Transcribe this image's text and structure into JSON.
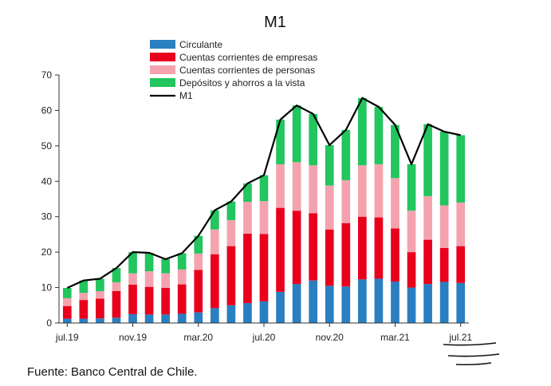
{
  "chart_data": {
    "type": "bar",
    "stacked": true,
    "title": "M1",
    "ylim": [
      0,
      70
    ],
    "yticks": [
      0,
      10,
      20,
      30,
      40,
      50,
      60,
      70
    ],
    "categories": [
      "jul.19",
      "ago.19",
      "sep.19",
      "oct.19",
      "nov.19",
      "dic.19",
      "ene.20",
      "feb.20",
      "mar.20",
      "abr.20",
      "may.20",
      "jun.20",
      "jul.20",
      "ago.20",
      "sep.20",
      "oct.20",
      "nov.20",
      "dic.20",
      "ene.21",
      "feb.21",
      "mar.21",
      "abr.21",
      "may.21",
      "jun.21",
      "jul.21"
    ],
    "xtick_labels": [
      {
        "index": 0,
        "label": "jul.19"
      },
      {
        "index": 4,
        "label": "nov.19"
      },
      {
        "index": 8,
        "label": "mar.20"
      },
      {
        "index": 12,
        "label": "jul.20"
      },
      {
        "index": 16,
        "label": "nov.20"
      },
      {
        "index": 20,
        "label": "mar.21"
      },
      {
        "index": 24,
        "label": "jul.21"
      }
    ],
    "series": [
      {
        "name": "Circulante",
        "color": "#2a7fc1",
        "values": [
          1.2,
          1.2,
          1.3,
          1.5,
          2.5,
          2.4,
          2.4,
          2.6,
          3.0,
          4.2,
          5.0,
          5.6,
          6.1,
          8.8,
          11.0,
          12.0,
          10.5,
          10.3,
          12.3,
          12.5,
          11.7,
          10.0,
          11.0,
          11.6,
          11.3
        ]
      },
      {
        "name": "Cuentas corrientes de empresas",
        "color": "#e8001c",
        "values": [
          3.6,
          5.3,
          5.6,
          7.5,
          8.3,
          7.8,
          7.5,
          8.3,
          12.0,
          15.2,
          16.7,
          19.6,
          19.0,
          23.7,
          20.7,
          19.0,
          15.9,
          17.9,
          17.7,
          17.3,
          15.0,
          10.0,
          12.5,
          9.6,
          10.4
        ]
      },
      {
        "name": "Cuentas corrientes de personas",
        "color": "#f4a3ae",
        "values": [
          2.2,
          2.0,
          2.1,
          2.5,
          3.2,
          4.4,
          4.1,
          4.2,
          4.6,
          7.0,
          7.3,
          9.0,
          9.3,
          12.3,
          13.7,
          13.5,
          12.4,
          12.1,
          14.5,
          15.0,
          14.2,
          11.7,
          12.3,
          12.0,
          12.3
        ]
      },
      {
        "name": "Depósitos y ahorros a la vista",
        "color": "#22c55e",
        "values": [
          2.9,
          3.5,
          3.5,
          4.0,
          6.0,
          5.2,
          4.0,
          4.6,
          5.0,
          5.4,
          5.3,
          5.2,
          7.3,
          12.6,
          16.0,
          14.5,
          11.4,
          14.2,
          19.0,
          16.2,
          15.0,
          13.1,
          20.3,
          20.8,
          19.0
        ]
      },
      {
        "name": "M1",
        "color": "#000000",
        "type": "line",
        "values": [
          9.9,
          12.0,
          12.5,
          15.5,
          20.0,
          19.8,
          18.0,
          19.7,
          24.6,
          31.8,
          34.3,
          39.4,
          41.7,
          57.4,
          61.4,
          59.0,
          50.2,
          54.5,
          63.5,
          61.0,
          55.9,
          44.8,
          56.1,
          54.0,
          53.0
        ]
      }
    ],
    "legend_position": "top-left",
    "grid": false
  },
  "source_note": "Fuente: Banco Central de Chile."
}
